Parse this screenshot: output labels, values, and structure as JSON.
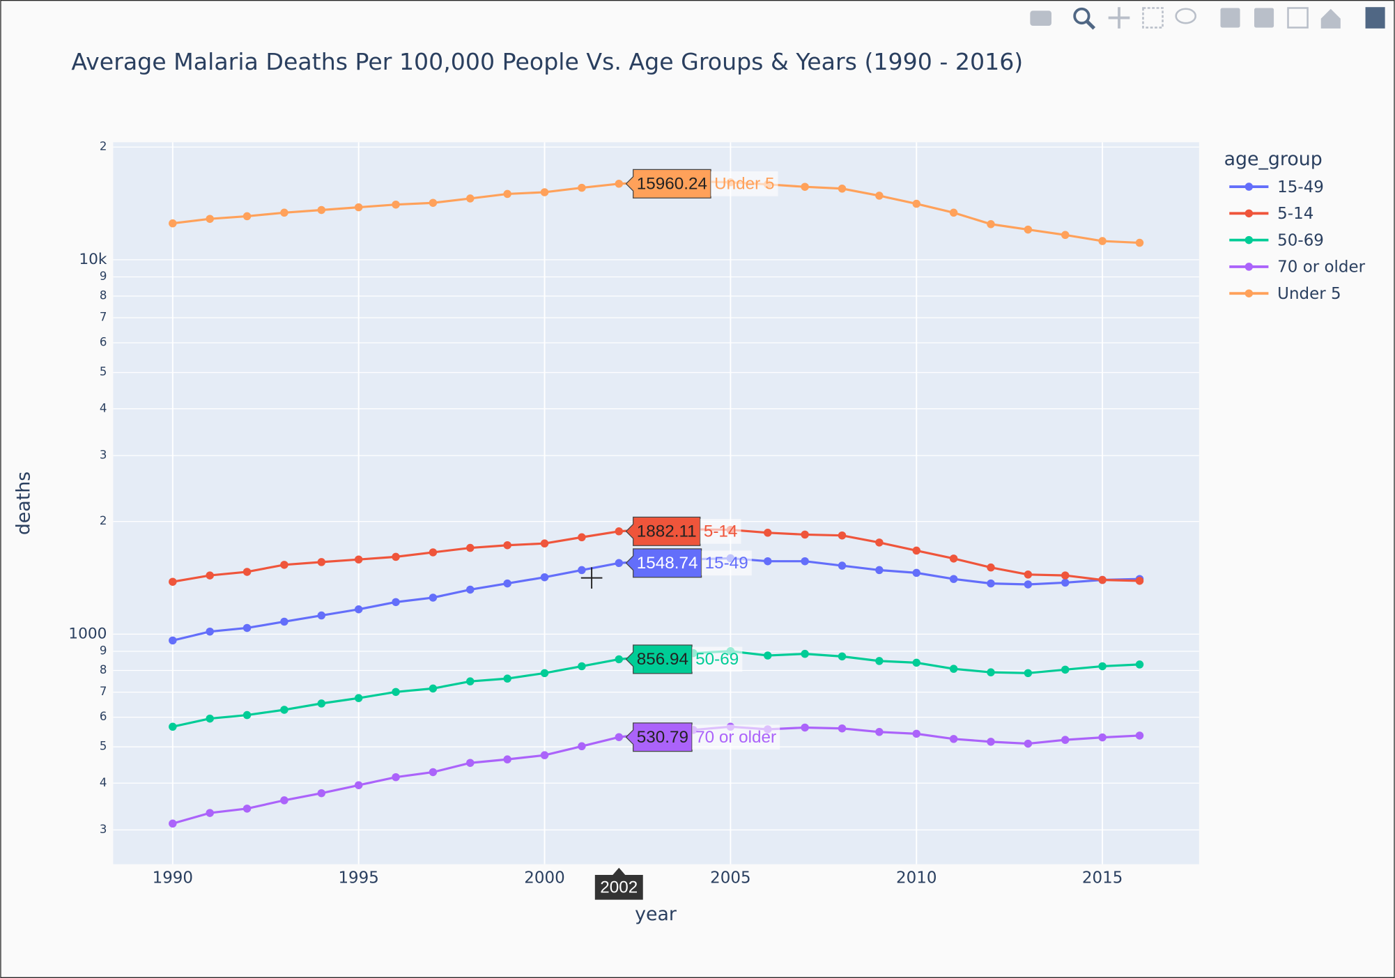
{
  "chart_data": {
    "type": "line",
    "title": "Average Malaria Deaths Per 100,000 People Vs. Age Groups & Years (1990 - 2016)",
    "x_label": "year",
    "y_label": "deaths",
    "legend_title": "age_group",
    "x": [
      1990,
      1991,
      1992,
      1993,
      1994,
      1995,
      1996,
      1997,
      1998,
      1999,
      2000,
      2001,
      2002,
      2003,
      2004,
      2005,
      2006,
      2007,
      2008,
      2009,
      2010,
      2011,
      2012,
      2013,
      2014,
      2015,
      2016
    ],
    "series": [
      {
        "name": "15-49",
        "color": "#636efa",
        "values": [
          962,
          1016,
          1039,
          1080,
          1122,
          1165,
          1218,
          1252,
          1315,
          1366,
          1419,
          1483,
          1548.74,
          1570,
          1585,
          1595,
          1566,
          1566,
          1524,
          1483,
          1458,
          1404,
          1366,
          1358,
          1373,
          1396,
          1404
        ]
      },
      {
        "name": "5-14",
        "color": "#ef553b",
        "values": [
          1380,
          1435,
          1467,
          1532,
          1558,
          1583,
          1609,
          1654,
          1700,
          1728,
          1747,
          1815,
          1882.11,
          1910,
          1905,
          1900,
          1866,
          1845,
          1835,
          1757,
          1672,
          1592,
          1507,
          1443,
          1435,
          1396,
          1388
        ]
      },
      {
        "name": "50-69",
        "color": "#00cc96",
        "values": [
          566,
          595,
          608,
          628,
          653,
          675,
          701,
          716,
          748,
          761,
          787,
          821,
          856.94,
          875,
          890,
          901,
          877,
          886,
          872,
          848,
          839,
          808,
          791,
          787,
          804,
          821,
          830
        ]
      },
      {
        "name": "70 or older",
        "color": "#ab63fa",
        "values": [
          312,
          333,
          342,
          360,
          376,
          395,
          415,
          428,
          453,
          463,
          475,
          502,
          530.79,
          545,
          555,
          566,
          557,
          563,
          560,
          548,
          542,
          525,
          516,
          510,
          522,
          530,
          536
        ]
      },
      {
        "name": "Under 5",
        "color": "#ffa15a",
        "values": [
          12510,
          12860,
          13070,
          13360,
          13580,
          13810,
          14040,
          14190,
          14580,
          14990,
          15150,
          15570,
          15960.24,
          16100,
          16200,
          16100,
          15900,
          15660,
          15490,
          14830,
          14110,
          13360,
          12450,
          12040,
          11650,
          11220,
          11100
        ]
      }
    ],
    "xlim": [
      1988.4,
      2017.6
    ],
    "xticks": [
      1990,
      1995,
      2000,
      2005,
      2010,
      2015
    ],
    "ylim": [
      243,
      20600
    ],
    "log_y": true,
    "grid": true,
    "yticks": [
      {
        "value": 300,
        "label": "3"
      },
      {
        "value": 400,
        "label": "4"
      },
      {
        "value": 500,
        "label": "5"
      },
      {
        "value": 600,
        "label": "6"
      },
      {
        "value": 700,
        "label": "7"
      },
      {
        "value": 800,
        "label": "8"
      },
      {
        "value": 900,
        "label": "9"
      },
      1000,
      {
        "value": 2000,
        "label": "2"
      },
      {
        "value": 3000,
        "label": "3"
      },
      {
        "value": 4000,
        "label": "4"
      },
      {
        "value": 5000,
        "label": "5"
      },
      {
        "value": 6000,
        "label": "6"
      },
      {
        "value": 7000,
        "label": "7"
      },
      {
        "value": 8000,
        "label": "8"
      },
      {
        "value": 9000,
        "label": "9"
      },
      {
        "value": 10000,
        "label": "10k"
      },
      {
        "value": 20000,
        "label": "2"
      }
    ],
    "hover": {
      "x": 2002
    }
  }
}
